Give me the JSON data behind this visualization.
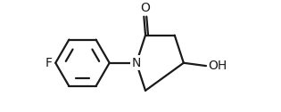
{
  "bg_color": "#ffffff",
  "line_color": "#1a1a1a",
  "line_width": 1.6,
  "font_size_atoms": 10,
  "figsize": [
    3.15,
    1.26
  ],
  "dpi": 100,
  "xlim": [
    -3.6,
    3.3
  ],
  "ylim": [
    -1.3,
    1.5
  ]
}
